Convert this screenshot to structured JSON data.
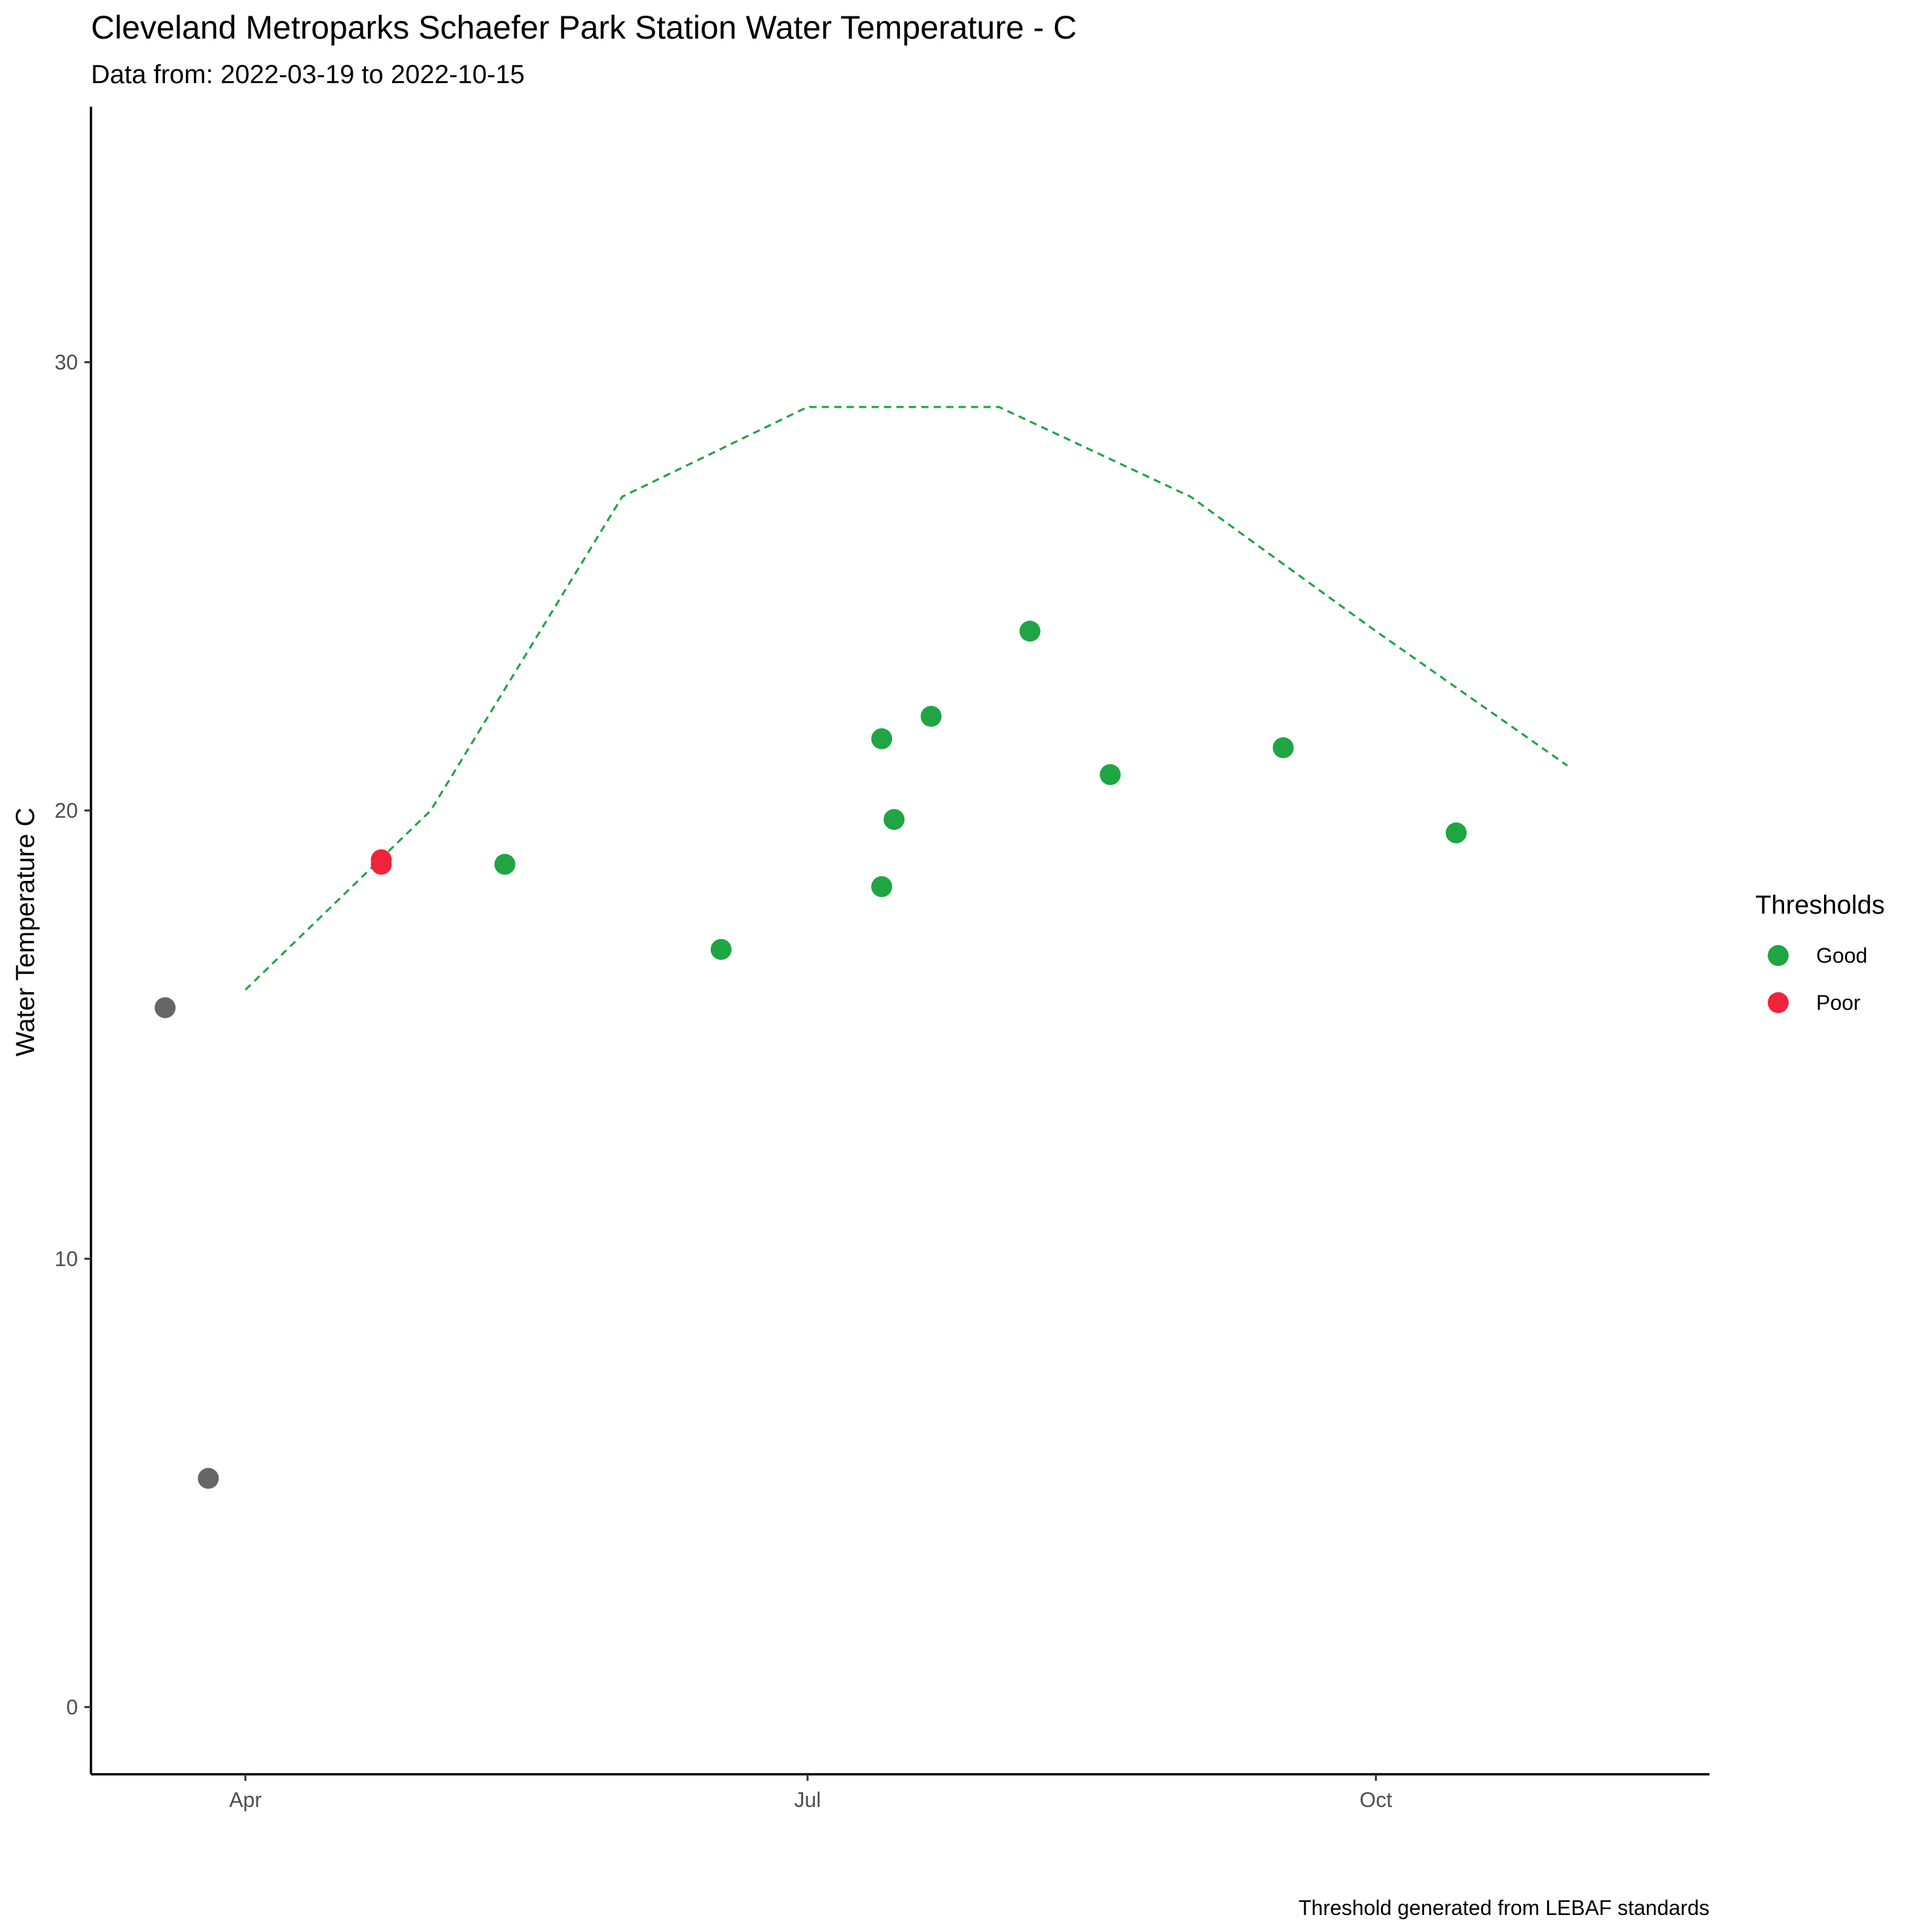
{
  "chart_data": {
    "type": "scatter",
    "title": "Cleveland Metroparks Schaefer Park Station Water Temperature - C",
    "subtitle": "Data from: 2022-03-19 to 2022-10-15",
    "xlabel": "",
    "ylabel": "Water Temperature C",
    "caption": "Threshold generated from LEBAF standards",
    "x_axis": {
      "type": "date",
      "range": [
        "2022-03-07",
        "2022-11-24"
      ],
      "ticks": [
        {
          "date": "2022-04-01",
          "label": "Apr"
        },
        {
          "date": "2022-07-01",
          "label": "Jul"
        },
        {
          "date": "2022-10-01",
          "label": "Oct"
        }
      ]
    },
    "y_axis": {
      "range": [
        -1.5,
        35.7
      ],
      "ticks": [
        0,
        10,
        20,
        30
      ]
    },
    "grid": false,
    "legend": {
      "title": "Thresholds",
      "position": "right",
      "entries": [
        {
          "label": "Good",
          "color": "#1fa543"
        },
        {
          "label": "Poor",
          "color": "#ef233c"
        }
      ]
    },
    "no_threshold_color": "#666666",
    "points": [
      {
        "date": "2022-03-19",
        "value": 15.6,
        "category": "none"
      },
      {
        "date": "2022-03-26",
        "value": 5.1,
        "category": "none"
      },
      {
        "date": "2022-04-23",
        "value": 18.8,
        "category": "Poor"
      },
      {
        "date": "2022-04-23",
        "value": 18.9,
        "category": "Poor"
      },
      {
        "date": "2022-05-13",
        "value": 18.8,
        "category": "Good"
      },
      {
        "date": "2022-06-17",
        "value": 16.9,
        "category": "Good"
      },
      {
        "date": "2022-07-13",
        "value": 21.6,
        "category": "Good"
      },
      {
        "date": "2022-07-13",
        "value": 18.3,
        "category": "Good"
      },
      {
        "date": "2022-07-15",
        "value": 19.8,
        "category": "Good"
      },
      {
        "date": "2022-07-21",
        "value": 22.1,
        "category": "Good"
      },
      {
        "date": "2022-08-06",
        "value": 24.0,
        "category": "Good"
      },
      {
        "date": "2022-08-19",
        "value": 20.8,
        "category": "Good"
      },
      {
        "date": "2022-09-16",
        "value": 21.4,
        "category": "Good"
      },
      {
        "date": "2022-10-14",
        "value": 19.5,
        "category": "Good"
      }
    ],
    "threshold_line": {
      "color": "#1fa543",
      "style": "dashed",
      "points": [
        {
          "date": "2022-04-01",
          "value": 16.0
        },
        {
          "date": "2022-05-01",
          "value": 20.0
        },
        {
          "date": "2022-06-01",
          "value": 27.0
        },
        {
          "date": "2022-07-01",
          "value": 29.0
        },
        {
          "date": "2022-08-01",
          "value": 29.0
        },
        {
          "date": "2022-09-01",
          "value": 27.0
        },
        {
          "date": "2022-10-01",
          "value": 24.0
        },
        {
          "date": "2022-11-01",
          "value": 21.0
        }
      ]
    }
  }
}
